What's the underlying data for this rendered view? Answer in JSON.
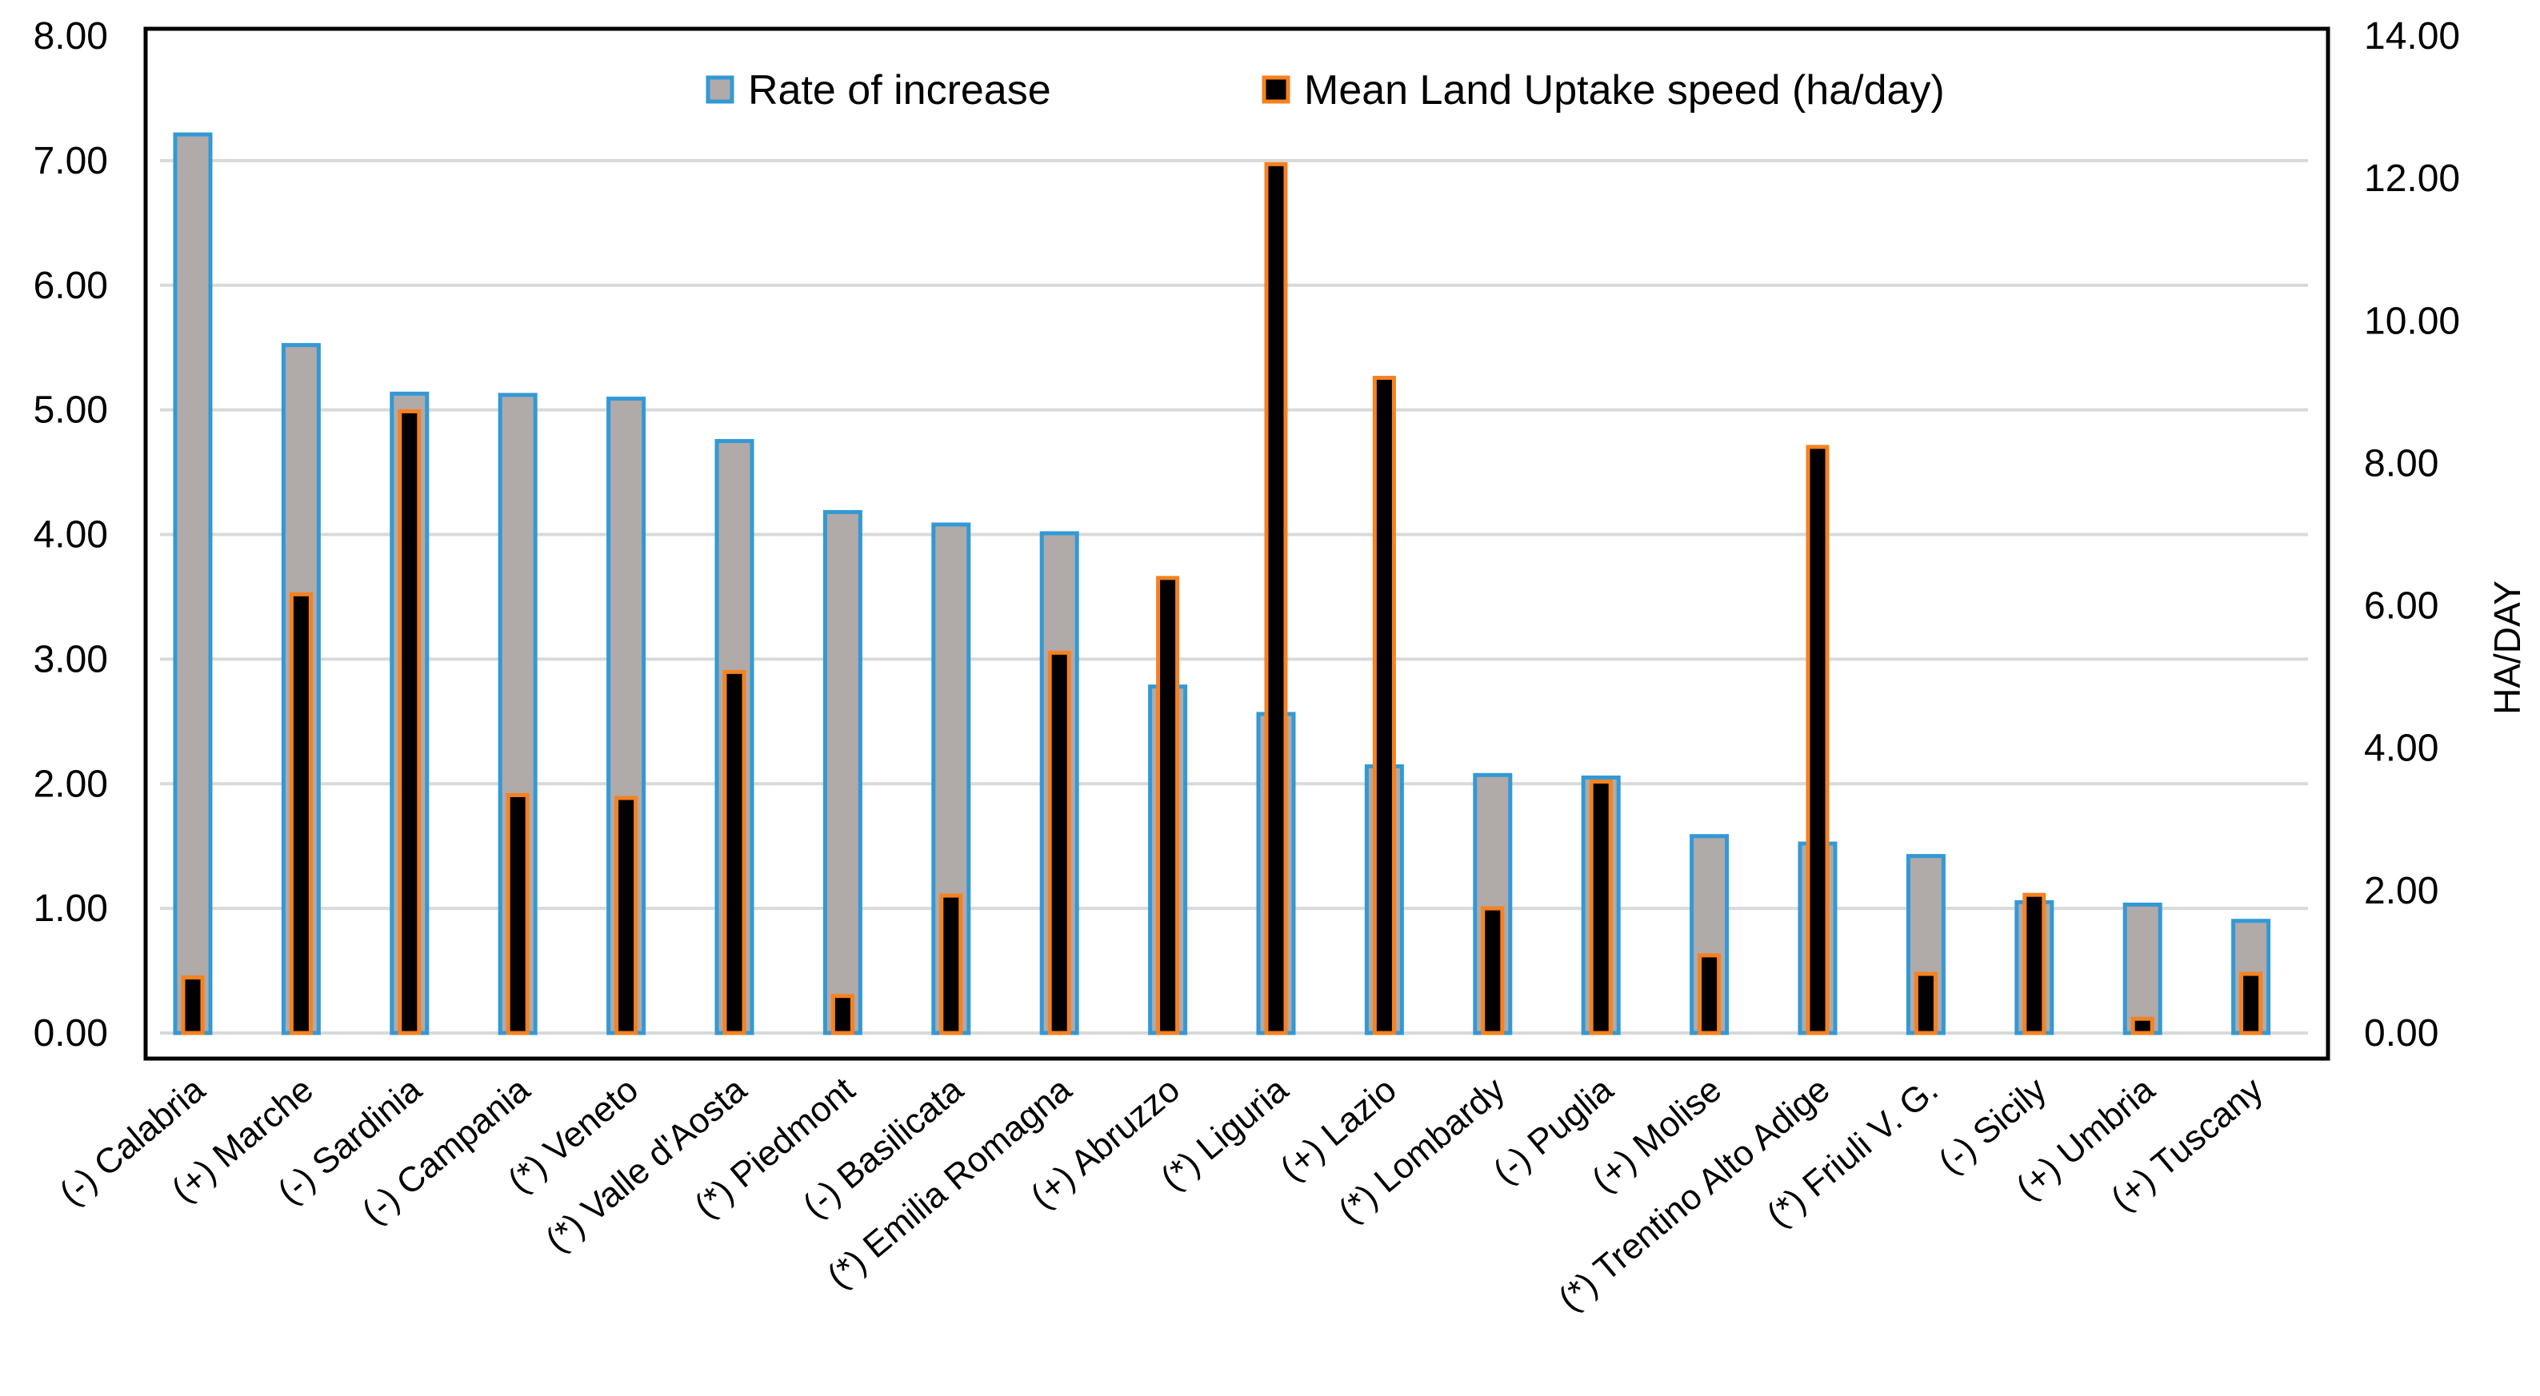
{
  "chart_data": {
    "type": "bar",
    "title": "",
    "xlabel": "",
    "ylabel": "",
    "y2label": "HA/DAY",
    "ylim": [
      0,
      8
    ],
    "y2lim": [
      0,
      14
    ],
    "yticks": [
      "0.00",
      "1.00",
      "2.00",
      "3.00",
      "4.00",
      "5.00",
      "6.00",
      "7.00",
      "8.00"
    ],
    "y2ticks": [
      "0.00",
      "2.00",
      "4.00",
      "6.00",
      "8.00",
      "10.00",
      "12.00",
      "14.00"
    ],
    "grid": true,
    "legend_position": "top",
    "categories": [
      "(-) Calabria",
      "(+) Marche",
      "(-) Sardinia",
      "(-) Campania",
      "(*) Veneto",
      "(*) Valle d'Aosta",
      "(*) Piedmont",
      "(-) Basilicata",
      "(*) Emilia Romagna",
      "(+) Abruzzo",
      "(*) Liguria",
      "(+) Lazio",
      "(*) Lombardy",
      "(-) Puglia",
      "(+) Molise",
      "(*) Trentino Alto Adige",
      "(*) Friuli V. G.",
      "(-) Sicily",
      "(+) Umbria",
      "(+) Tuscany"
    ],
    "series": [
      {
        "name": "Rate of increase",
        "axis": "left",
        "fill": "#b0aaa8",
        "stroke": "#3399d6",
        "values": [
          7.21,
          5.52,
          5.13,
          5.12,
          5.09,
          4.75,
          4.18,
          4.08,
          4.01,
          2.78,
          2.56,
          2.14,
          2.07,
          2.05,
          1.58,
          1.52,
          1.42,
          1.05,
          1.03,
          0.9
        ]
      },
      {
        "name": "Mean Land Uptake speed (ha/day)",
        "axis": "right",
        "fill": "#000000",
        "stroke": "#f58220",
        "values": [
          0.78,
          6.16,
          8.73,
          3.34,
          3.3,
          5.07,
          0.52,
          1.93,
          5.34,
          6.39,
          12.2,
          9.2,
          1.75,
          3.53,
          1.09,
          8.23,
          0.83,
          1.94,
          0.2,
          0.83
        ]
      }
    ]
  }
}
